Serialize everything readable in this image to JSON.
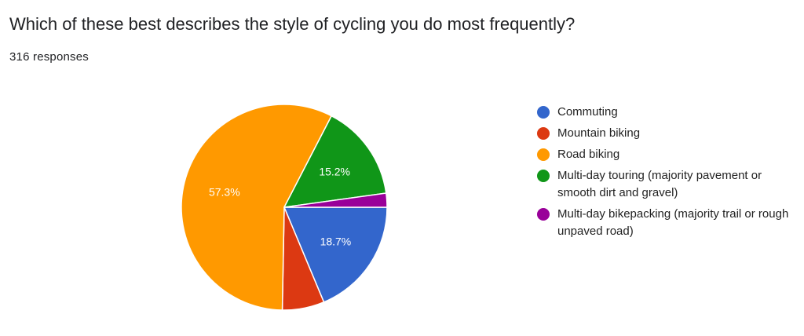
{
  "header": {
    "question": "Which of these best describes the style of cycling you do most frequently?",
    "responses": "316 responses"
  },
  "legend": {
    "items": [
      {
        "label": "Commuting",
        "color": "#3366cc"
      },
      {
        "label": "Mountain biking",
        "color": "#dc3912"
      },
      {
        "label": "Road biking",
        "color": "#ff9900"
      },
      {
        "label": "Multi-day touring (majority pavement or smooth dirt and gravel)",
        "color": "#109618"
      },
      {
        "label": "Multi-day bikepacking (majority trail or rough unpaved road)",
        "color": "#990099"
      }
    ]
  },
  "chart_data": {
    "type": "pie",
    "title": "",
    "start_angle": "3 o'clock, clockwise",
    "legend_position": "right",
    "slices": [
      {
        "name": "Commuting",
        "value": 18.7,
        "label": "18.7%",
        "color": "#3366cc"
      },
      {
        "name": "Mountain biking",
        "value": 6.6,
        "label": "",
        "color": "#dc3912"
      },
      {
        "name": "Road biking",
        "value": 57.3,
        "label": "57.3%",
        "color": "#ff9900"
      },
      {
        "name": "Multi-day touring (majority pavement or smooth dirt and gravel)",
        "value": 15.2,
        "label": "15.2%",
        "color": "#109618"
      },
      {
        "name": "Multi-day bikepacking (majority trail or rough unpaved road)",
        "value": 2.2,
        "label": "",
        "color": "#990099"
      }
    ]
  }
}
